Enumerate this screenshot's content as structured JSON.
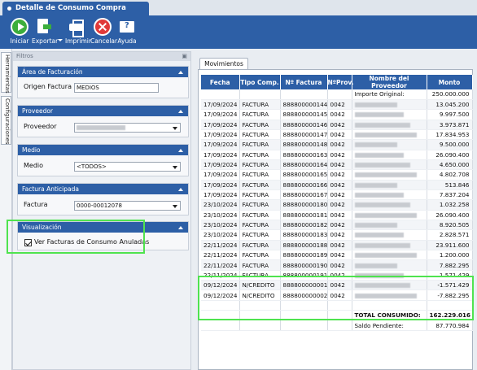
{
  "window": {
    "title": "Detalle de Consumo Compra Anticipada"
  },
  "toolbar": {
    "iniciar": "Iniciar",
    "exportar": "Exportar",
    "imprimir": "Imprimir",
    "cancelar": "Cancelar",
    "ayuda": "Ayuda"
  },
  "side_tabs": {
    "herramientas": "Herramientas",
    "configuraciones": "Configuraciones"
  },
  "filters": {
    "header": "Filtros",
    "area": {
      "title": "Área de Facturación",
      "label": "Origen Factura",
      "value": "MEDIOS"
    },
    "proveedor": {
      "title": "Proveedor",
      "label": "Proveedor"
    },
    "medio": {
      "title": "Medio",
      "label": "Medio",
      "value": "<TODOS>"
    },
    "factura": {
      "title": "Factura Anticipada",
      "label": "Factura",
      "value": "0000-00012078"
    },
    "visualizacion": {
      "title": "Visualización",
      "checkbox_label": "Ver Facturas de Consumo Anuladas"
    }
  },
  "movimientos": {
    "tab": "Movimientos",
    "columns": [
      "Fecha",
      "Tipo Comp.",
      "Nº Factura",
      "NºProv.",
      "Nombre del Proveedor",
      "Monto"
    ],
    "first_row": {
      "label": "Importe Original:",
      "monto": "250.000.000"
    },
    "rows": [
      [
        "17/09/2024",
        "FACTURA",
        "888800000144",
        "0042",
        "13.045.200"
      ],
      [
        "17/09/2024",
        "FACTURA",
        "888800000145",
        "0042",
        "9.997.500"
      ],
      [
        "17/09/2024",
        "FACTURA",
        "888800000146",
        "0042",
        "3.973.871"
      ],
      [
        "17/09/2024",
        "FACTURA",
        "888800000147",
        "0042",
        "17.834.953"
      ],
      [
        "17/09/2024",
        "FACTURA",
        "888800000148",
        "0042",
        "9.500.000"
      ],
      [
        "17/09/2024",
        "FACTURA",
        "888800000163",
        "0042",
        "26.090.400"
      ],
      [
        "17/09/2024",
        "FACTURA",
        "888800000164",
        "0042",
        "4.650.000"
      ],
      [
        "17/09/2024",
        "FACTURA",
        "888800000165",
        "0042",
        "4.802.708"
      ],
      [
        "17/09/2024",
        "FACTURA",
        "888800000166",
        "0042",
        "513.846"
      ],
      [
        "17/09/2024",
        "FACTURA",
        "888800000167",
        "0042",
        "7.837.204"
      ],
      [
        "23/10/2024",
        "FACTURA",
        "888800000180",
        "0042",
        "1.032.258"
      ],
      [
        "23/10/2024",
        "FACTURA",
        "888800000181",
        "0042",
        "26.090.400"
      ],
      [
        "23/10/2024",
        "FACTURA",
        "888800000182",
        "0042",
        "8.920.505"
      ],
      [
        "23/10/2024",
        "FACTURA",
        "888800000183",
        "0042",
        "2.828.571"
      ],
      [
        "22/11/2024",
        "FACTURA",
        "888800000188",
        "0042",
        "23.911.600"
      ],
      [
        "22/11/2024",
        "FACTURA",
        "888800000189",
        "0042",
        "1.200.000"
      ],
      [
        "22/11/2024",
        "FACTURA",
        "888800000190",
        "0042",
        "7.882.295"
      ],
      [
        "22/11/2024",
        "FACTURA",
        "888800000191",
        "0042",
        "1.571.429"
      ],
      [
        "09/12/2024",
        "N/CREDITO",
        "888800000001",
        "0042",
        "-1.571.429"
      ],
      [
        "09/12/2024",
        "N/CREDITO",
        "888800000002",
        "0042",
        "-7.882.295"
      ]
    ],
    "total_label": "TOTAL CONSUMIDO:",
    "total_value": "162.229.016",
    "saldo_label": "Saldo Pendiente:",
    "saldo_value": "87.770.984"
  }
}
